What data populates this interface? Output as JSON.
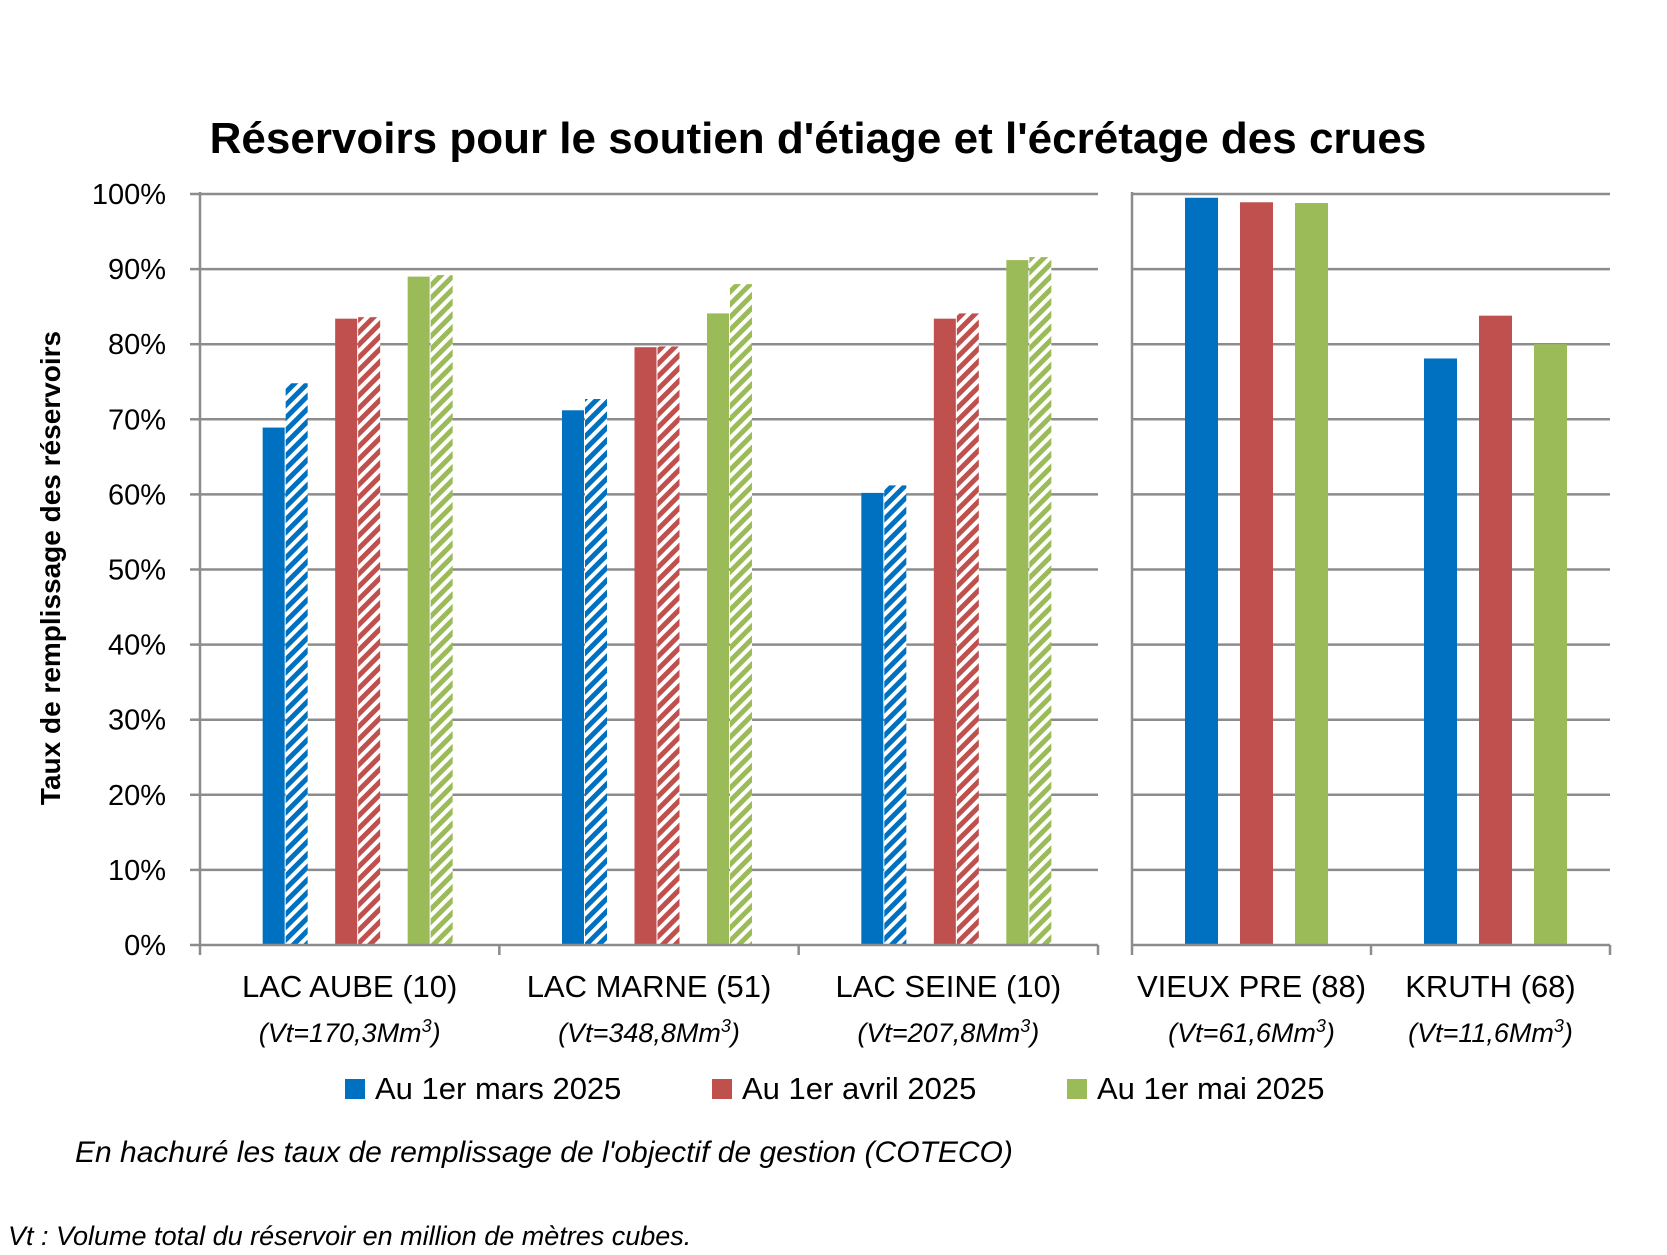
{
  "chart_data": {
    "type": "bar",
    "title": "Réservoirs pour le soutien d'étiage et l'écrétage des crues",
    "ylabel": "Taux de remplissage des réservoirs",
    "ylim": [
      0,
      100
    ],
    "yticks": [
      "0%",
      "10%",
      "20%",
      "30%",
      "40%",
      "50%",
      "60%",
      "70%",
      "80%",
      "90%",
      "100%"
    ],
    "grid": true,
    "legend_position": "bottom",
    "series": [
      {
        "name": "Au 1er mars 2025",
        "color": "#0070C0"
      },
      {
        "name": "Au 1er avril 2025",
        "color": "#C0504D"
      },
      {
        "name": "Au 1er mai 2025",
        "color": "#9BBB59"
      }
    ],
    "groups": [
      {
        "categories": [
          {
            "label": "LAC AUBE (10)",
            "volume": "(Vt=170,3Mm",
            "volume_unit": "3",
            "volume_close": ")",
            "values": [
              68.9,
              83.4,
              89.0
            ],
            "objectives": [
              74.8,
              83.6,
              89.2
            ]
          },
          {
            "label": "LAC MARNE (51)",
            "volume": "(Vt=348,8Mm",
            "volume_unit": "3",
            "volume_close": ")",
            "values": [
              71.2,
              79.6,
              84.1
            ],
            "objectives": [
              72.7,
              79.7,
              88.0
            ]
          },
          {
            "label": "LAC SEINE (10)",
            "volume": "(Vt=207,8Mm",
            "volume_unit": "3",
            "volume_close": ")",
            "values": [
              60.2,
              83.4,
              91.2
            ],
            "objectives": [
              61.2,
              84.1,
              91.6
            ]
          }
        ]
      },
      {
        "categories": [
          {
            "label": "VIEUX PRE (88)",
            "volume": "(Vt=61,6Mm",
            "volume_unit": "3",
            "volume_close": ")",
            "values": [
              99.5,
              98.9,
              98.8
            ]
          },
          {
            "label": "KRUTH (68)",
            "volume": "(Vt=11,6Mm",
            "volume_unit": "3",
            "volume_close": ")",
            "values": [
              78.1,
              83.8,
              80.0
            ]
          }
        ]
      }
    ],
    "notes": [
      "En hachuré les taux de remplissage de l'objectif de gestion (COTECO)",
      "Vt : Volume total du réservoir en million de mètres cubes."
    ]
  }
}
